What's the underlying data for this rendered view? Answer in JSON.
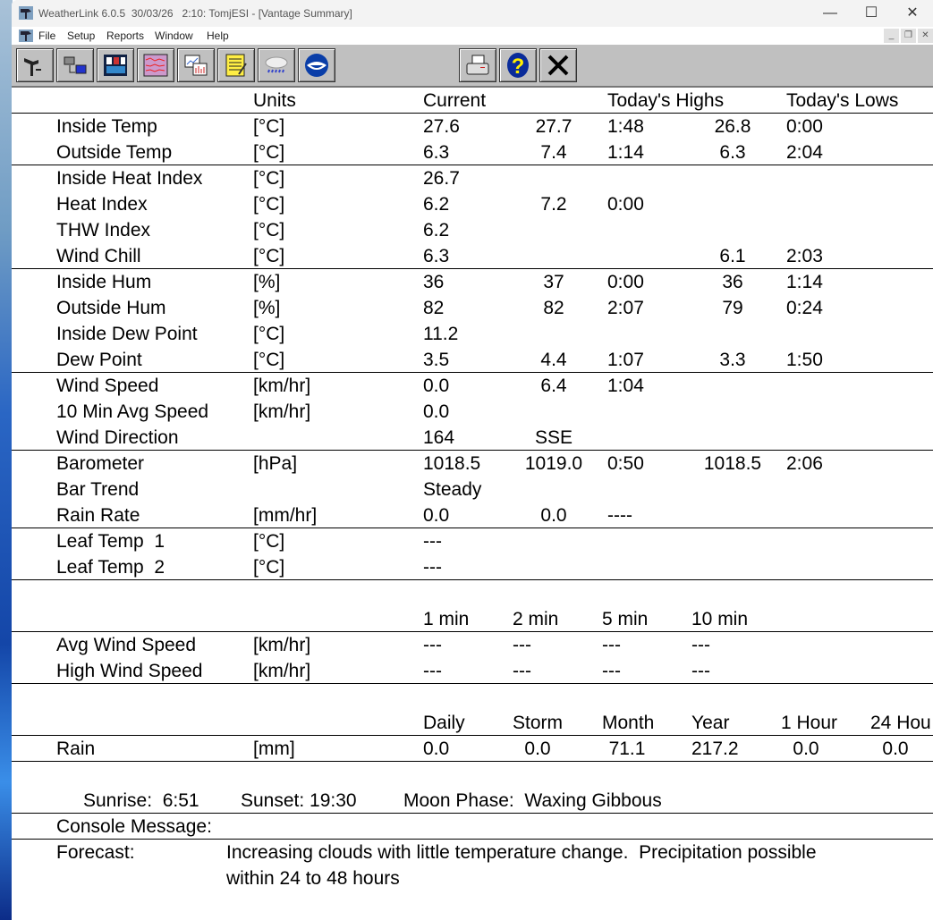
{
  "window": {
    "title": "WeatherLink 6.0.5  30/03/26   2:10: TomjESI - [Vantage Summary]",
    "controls": {
      "minimize": "—",
      "maximize": "☐",
      "close": "✕"
    },
    "mdi_controls": {
      "minimize": "_",
      "restore": "❐",
      "close": "✕"
    }
  },
  "menu": [
    "File",
    "Setup",
    "Reports",
    "Window",
    "Help"
  ],
  "toolbar": {
    "buttons": [
      "station-icon",
      "download-icon",
      "bulletin-icon",
      "strip-charts-icon",
      "browse-graph-icon",
      "notes-icon",
      "weather-cloud-icon",
      "noaa-icon",
      "print-icon",
      "help-icon",
      "close-icon"
    ]
  },
  "summary": {
    "rows": [
      [
        "",
        "Units",
        "Current",
        "",
        "Today's Highs",
        "",
        "Today's Lows"
      ],
      [
        "Inside Temp",
        "[°C]",
        "27.6",
        "27.7",
        "1:48",
        "26.8",
        "0:00"
      ],
      [
        "Outside Temp",
        "[°C]",
        "6.3",
        "7.4",
        "1:14",
        "6.3",
        "2:04"
      ],
      [
        "Inside Heat Index",
        "[°C]",
        "26.7",
        "",
        "",
        "",
        ""
      ],
      [
        "Heat Index",
        "[°C]",
        "6.2",
        "7.2",
        "0:00",
        "",
        ""
      ],
      [
        "THW Index",
        "[°C]",
        "6.2",
        "",
        "",
        "",
        ""
      ],
      [
        "Wind Chill",
        "[°C]",
        "6.3",
        "",
        "",
        "6.1",
        "2:03"
      ],
      [
        "Inside Hum",
        "[%]",
        "36",
        "37",
        "0:00",
        "36",
        "1:14"
      ],
      [
        "Outside Hum",
        "[%]",
        "82",
        "82",
        "2:07",
        "79",
        "0:24"
      ],
      [
        "Inside Dew Point",
        "[°C]",
        "11.2",
        "",
        "",
        "",
        ""
      ],
      [
        "Dew Point",
        "[°C]",
        "3.5",
        "4.4",
        "1:07",
        "3.3",
        "1:50"
      ],
      [
        "Wind Speed",
        "[km/hr]",
        "0.0",
        "6.4",
        "1:04",
        "",
        ""
      ],
      [
        "10 Min Avg Speed",
        "[km/hr]",
        "0.0",
        "",
        "",
        "",
        ""
      ],
      [
        "Wind Direction",
        "",
        "164",
        "SSE",
        "",
        "",
        ""
      ],
      [
        "Barometer",
        "[hPa]",
        "1018.5",
        "1019.0",
        "0:50",
        "1018.5",
        "2:06"
      ],
      [
        "Bar Trend",
        "",
        "Steady",
        "",
        "",
        "",
        ""
      ],
      [
        "Rain Rate",
        "[mm/hr]",
        "0.0",
        "0.0",
        "----",
        "",
        ""
      ],
      [
        "Leaf Temp  1",
        "[°C]",
        "---",
        "",
        "",
        "",
        ""
      ],
      [
        "Leaf Temp  2",
        "[°C]",
        "---",
        "",
        "",
        "",
        ""
      ]
    ],
    "wind": {
      "headers": [
        "1 min",
        "2 min",
        "5 min",
        "10 min"
      ],
      "rows": [
        [
          "Avg Wind Speed",
          "[km/hr]",
          "---",
          "---",
          "---",
          "---"
        ],
        [
          "High Wind Speed",
          "[km/hr]",
          "---",
          "---",
          "---",
          "---"
        ]
      ]
    },
    "rain": {
      "headers": [
        "Daily",
        "Storm",
        "Month",
        "Year",
        "1 Hour",
        "24 Hou"
      ],
      "row": [
        "Rain",
        "[mm]",
        "0.0",
        "0.0",
        "71.1",
        "217.2",
        "0.0",
        "0.0"
      ]
    },
    "sun": {
      "sunrise": "Sunrise:  6:51",
      "sunset": "Sunset: 19:30",
      "moon": "Moon Phase:  Waxing Gibbous"
    },
    "console_label": "Console Message:",
    "forecast_label": "Forecast:",
    "forecast_lines": [
      "Increasing clouds with little temperature change.  Precipitation possible",
      "within 24 to 48 hours"
    ]
  }
}
